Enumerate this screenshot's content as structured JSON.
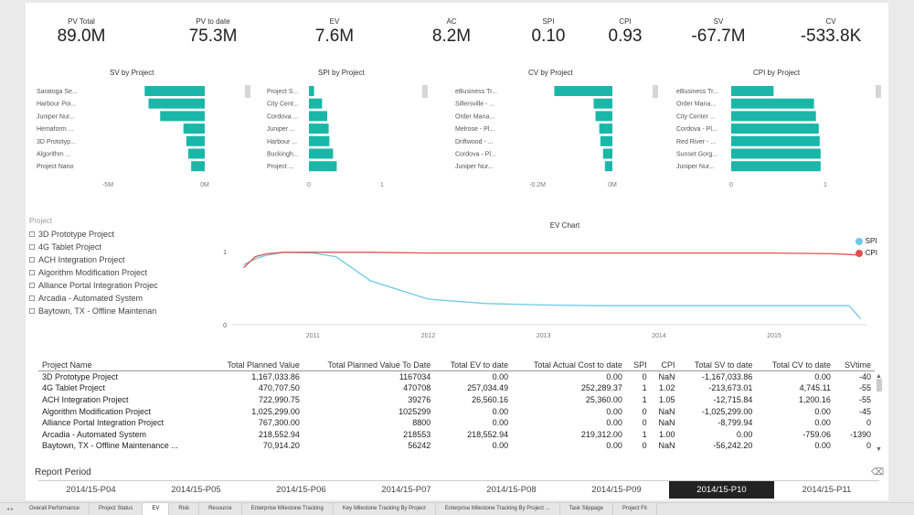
{
  "kpis": [
    {
      "label": "PV Total",
      "value": "89.0M"
    },
    {
      "label": "PV to date",
      "value": "75.3M"
    },
    {
      "label": "EV",
      "value": "7.6M"
    },
    {
      "label": "AC",
      "value": "8.2M"
    },
    {
      "label": "SPI",
      "value": "0.10"
    },
    {
      "label": "CPI",
      "value": "0.93"
    },
    {
      "label": "SV",
      "value": "-67.7M"
    },
    {
      "label": "CV",
      "value": "-533.8K"
    }
  ],
  "colors": {
    "bar": "#1ab7a8",
    "spi": "#6fc8e6",
    "cpi": "#e0514d",
    "selected": "#222222"
  },
  "chart_data": [
    {
      "type": "bar",
      "title": "SV  by Project",
      "categories": [
        "Saratoga Se...",
        "Harbour Poi...",
        "Juniper Nur...",
        "Hemaform ...",
        "3D Prototyp...",
        "Algorithm ...",
        "Project Nano"
      ],
      "values": [
        -3.1,
        -2.9,
        -2.3,
        -1.1,
        -0.95,
        -0.85,
        -0.7
      ],
      "xlim": [
        -5,
        0
      ],
      "ticks": [
        "-5M",
        "0M"
      ]
    },
    {
      "type": "bar",
      "title": "SPI by Project",
      "categories": [
        "Project S...",
        "City Cent...",
        "Cordova ...",
        "Juniper ...",
        "Harbour ...",
        "Buckingh...",
        "Project ..."
      ],
      "values": [
        0.07,
        0.18,
        0.25,
        0.27,
        0.28,
        0.33,
        0.38
      ],
      "xlim": [
        0,
        1
      ],
      "ticks": [
        "0",
        "1"
      ]
    },
    {
      "type": "bar",
      "title": "CV  by Project",
      "categories": [
        "eBusiness Tr...",
        "Sillersville - ...",
        "Order Mana...",
        "Melrose - Pl...",
        "Driftwood - ...",
        "Cordova - Pl...",
        "Juniper Nur..."
      ],
      "values": [
        -0.155,
        -0.05,
        -0.045,
        -0.035,
        -0.032,
        -0.025,
        -0.02
      ],
      "xlim": [
        -0.2,
        0
      ],
      "ticks": [
        "-0.2M",
        "0M"
      ]
    },
    {
      "type": "bar",
      "title": "CPI by Project",
      "categories": [
        "eBusiness Tr...",
        "Order Mana...",
        "City Center ...",
        "Cordova - Pl...",
        "Red River - ...",
        "Sunset Gorg...",
        "Juniper Nur..."
      ],
      "values": [
        0.45,
        0.88,
        0.9,
        0.93,
        0.94,
        0.95,
        0.95
      ],
      "xlim": [
        0,
        1
      ],
      "ticks": [
        "0",
        "1"
      ]
    },
    {
      "type": "line",
      "title": "EV Chart",
      "x": [
        2010.4,
        2010.5,
        2010.6,
        2010.75,
        2011.0,
        2011.2,
        2011.5,
        2012.0,
        2012.5,
        2013.0,
        2013.5,
        2014.0,
        2014.5,
        2015.0,
        2015.5,
        2015.65,
        2015.75
      ],
      "series": [
        {
          "name": "SPI",
          "values": [
            0.82,
            0.9,
            0.95,
            0.99,
            0.98,
            0.93,
            0.6,
            0.35,
            0.29,
            0.27,
            0.26,
            0.26,
            0.26,
            0.26,
            0.26,
            0.26,
            0.08
          ]
        },
        {
          "name": "CPI",
          "values": [
            0.78,
            0.93,
            0.97,
            0.99,
            0.99,
            0.99,
            0.99,
            0.98,
            0.98,
            0.98,
            0.98,
            0.98,
            0.98,
            0.98,
            0.97,
            0.96,
            0.95
          ]
        }
      ],
      "xticks": [
        "2011",
        "2012",
        "2013",
        "2014",
        "2015"
      ],
      "xtick_values": [
        2011,
        2012,
        2013,
        2014,
        2015
      ],
      "yticks": [
        "0",
        "1"
      ],
      "ylim": [
        0,
        1.25
      ],
      "xlim": [
        2010.3,
        2015.8
      ]
    }
  ],
  "slicer": {
    "header": "Project",
    "items": [
      "3D Prototype Project",
      "4G Tablet Project",
      "ACH Integration Project",
      "Algorithm Modification Project",
      "Alliance Portal Integration Projec",
      "Arcadia - Automated System",
      "Baytown, TX - Offline Maintenan"
    ]
  },
  "legend": [
    "SPI",
    "CPI"
  ],
  "table": {
    "headers": [
      "Project Name",
      "Total Planned Value",
      "Total Planned Value To Date",
      "Total EV to date",
      "Total Actual Cost to date",
      "SPI",
      "CPI",
      "Total SV to date",
      "Total CV to date",
      "SVtime"
    ],
    "rows": [
      [
        "3D Prototype Project",
        "1,167,033.86",
        "1167034",
        "0.00",
        "0.00",
        "0",
        "NaN",
        "-1,167,033.86",
        "0.00",
        "-40"
      ],
      [
        "4G Tablet Project",
        "470,707.50",
        "470708",
        "257,034.49",
        "252,289.37",
        "1",
        "1.02",
        "-213,673.01",
        "4,745.11",
        "-55"
      ],
      [
        "ACH Integration Project",
        "722,990.75",
        "39276",
        "26,560.16",
        "25,360.00",
        "1",
        "1.05",
        "-12,715.84",
        "1,200.16",
        "-55"
      ],
      [
        "Algorithm Modification Project",
        "1,025,299.00",
        "1025299",
        "0.00",
        "0.00",
        "0",
        "NaN",
        "-1,025,299.00",
        "0.00",
        "-45"
      ],
      [
        "Alliance Portal Integration Project",
        "767,300.00",
        "8800",
        "0.00",
        "0.00",
        "0",
        "NaN",
        "-8,799.94",
        "0.00",
        "0"
      ],
      [
        "Arcadia - Automated System",
        "218,552.94",
        "218553",
        "218,552.94",
        "219,312.00",
        "1",
        "1.00",
        "0.00",
        "-759.06",
        "-1390"
      ],
      [
        "Baytown, TX - Offline Maintenance ...",
        "70,914.20",
        "56242",
        "0.00",
        "0.00",
        "0",
        "NaN",
        "-56,242.20",
        "0.00",
        "0"
      ]
    ]
  },
  "report_period": {
    "title": "Report Period",
    "items": [
      "2014/15-P04",
      "2014/15-P05",
      "2014/15-P06",
      "2014/15-P07",
      "2014/15-P08",
      "2014/15-P09",
      "2014/15-P10",
      "2014/15-P11"
    ],
    "selected": "2014/15-P10"
  },
  "tabs": {
    "items": [
      "Overall Performance",
      "Project Status",
      "EV",
      "Risk",
      "Resource",
      "Enterprise Milestone Tracking",
      "Key Milestone Tracking By Project",
      "Enterprise Milestone Tracking By Project ...",
      "Task Slippage",
      "Project Fit"
    ],
    "active": "EV"
  }
}
